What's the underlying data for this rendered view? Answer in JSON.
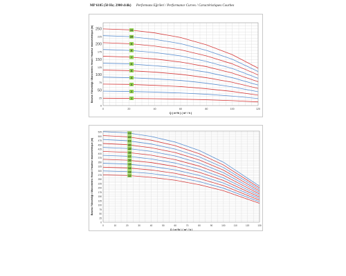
{
  "header": {
    "model": "MP 6105 (50 Hz; 2900 d/dk)",
    "subtitle": "Performans Eğrileri / Performance Curves / Caractéristiques Courbes"
  },
  "colors": {
    "red": "#d63a3a",
    "blue": "#5a8fd1",
    "grid": "#d9d9d9",
    "label_bg": "#8fd14a"
  },
  "chart_data": [
    {
      "type": "line",
      "ylabel": "Basma Yüksekliği / Manometric Head / Hauteur manométrique (m)",
      "xlabel": "Q ( m³/h ) ( m³ / h )",
      "xlim": [
        0,
        120
      ],
      "ylim": [
        0,
        270
      ],
      "x_ticks": [
        0,
        20,
        40,
        60,
        80,
        100,
        120
      ],
      "y_ticks": [
        0,
        25,
        50,
        75,
        100,
        125,
        150,
        175,
        200,
        225,
        250
      ],
      "y_ticks_major": [
        50,
        100,
        150,
        200,
        250
      ],
      "x": [
        0,
        20,
        40,
        60,
        80,
        100,
        120
      ],
      "label_x": 22,
      "series": [
        {
          "label": "1",
          "values": [
            24,
            23.5,
            22.5,
            21,
            19,
            16,
            12
          ]
        },
        {
          "label": "2",
          "values": [
            47,
            46,
            44,
            41,
            37,
            31,
            23
          ]
        },
        {
          "label": "3",
          "values": [
            70,
            69,
            66,
            62,
            55,
            46,
            34
          ]
        },
        {
          "label": "4",
          "values": [
            93,
            91,
            87,
            82,
            73,
            61,
            45
          ]
        },
        {
          "label": "5",
          "values": [
            116,
            114,
            109,
            102,
            91,
            76,
            56
          ]
        },
        {
          "label": "6",
          "values": [
            138,
            136,
            130,
            122,
            109,
            91,
            67
          ]
        },
        {
          "label": "7",
          "values": [
            161,
            158,
            152,
            142,
            127,
            106,
            78
          ]
        },
        {
          "label": "8",
          "values": [
            183,
            180,
            173,
            162,
            144,
            121,
            89
          ]
        },
        {
          "label": "9",
          "values": [
            205,
            202,
            194,
            182,
            162,
            136,
            100
          ]
        },
        {
          "label": "10",
          "values": [
            228,
            225,
            216,
            202,
            180,
            151,
            111
          ]
        },
        {
          "label": "11",
          "values": [
            250,
            247,
            237,
            222,
            198,
            166,
            122
          ]
        }
      ]
    },
    {
      "type": "line",
      "ylabel": "Basma Yüksekliği / Manometric Head / Hauteur manométrique (m)",
      "xlabel": "Q ( m³/h ) ( m³ / h )",
      "xlim": [
        0,
        130
      ],
      "ylim": [
        0,
        530
      ],
      "x_ticks": [
        0,
        10,
        20,
        30,
        40,
        50,
        60,
        70,
        80,
        90,
        100,
        110,
        120,
        130
      ],
      "y_ticks": [
        0,
        25,
        50,
        75,
        100,
        125,
        150,
        175,
        200,
        225,
        250,
        275,
        300,
        325,
        350,
        375,
        400,
        425,
        450,
        475,
        500,
        525
      ],
      "y_ticks_major": [],
      "x": [
        0,
        20,
        40,
        60,
        80,
        100,
        120,
        130
      ],
      "label_x": 22,
      "series": [
        {
          "label": "12",
          "values": [
            275,
            272,
            261,
            244,
            218,
            183,
            134,
            110
          ]
        },
        {
          "label": "13",
          "values": [
            298,
            294,
            283,
            264,
            236,
            198,
            145,
            119
          ]
        },
        {
          "label": "14",
          "values": [
            320,
            316,
            304,
            284,
            254,
            213,
            156,
            128
          ]
        },
        {
          "label": "15",
          "values": [
            343,
            338,
            325,
            304,
            272,
            228,
            167,
            137
          ]
        },
        {
          "label": "16",
          "values": [
            366,
            361,
            347,
            324,
            290,
            243,
            178,
            146
          ]
        },
        {
          "label": "17",
          "values": [
            389,
            384,
            368,
            344,
            308,
            258,
            189,
            155
          ]
        },
        {
          "label": "18",
          "values": [
            412,
            406,
            390,
            364,
            326,
            273,
            200,
            164
          ]
        },
        {
          "label": "19",
          "values": [
            435,
            429,
            412,
            385,
            344,
            288,
            211,
            173
          ]
        },
        {
          "label": "20",
          "values": [
            458,
            451,
            433,
            405,
            362,
            303,
            222,
            182
          ]
        },
        {
          "label": "21",
          "values": [
            481,
            474,
            455,
            425,
            380,
            318,
            233,
            191
          ]
        },
        {
          "label": "22",
          "values": [
            504,
            497,
            477,
            445,
            398,
            333,
            244,
            200
          ]
        },
        {
          "label": "23",
          "values": [
            527,
            520,
            499,
            466,
            417,
            349,
            256,
            210
          ]
        }
      ]
    }
  ]
}
